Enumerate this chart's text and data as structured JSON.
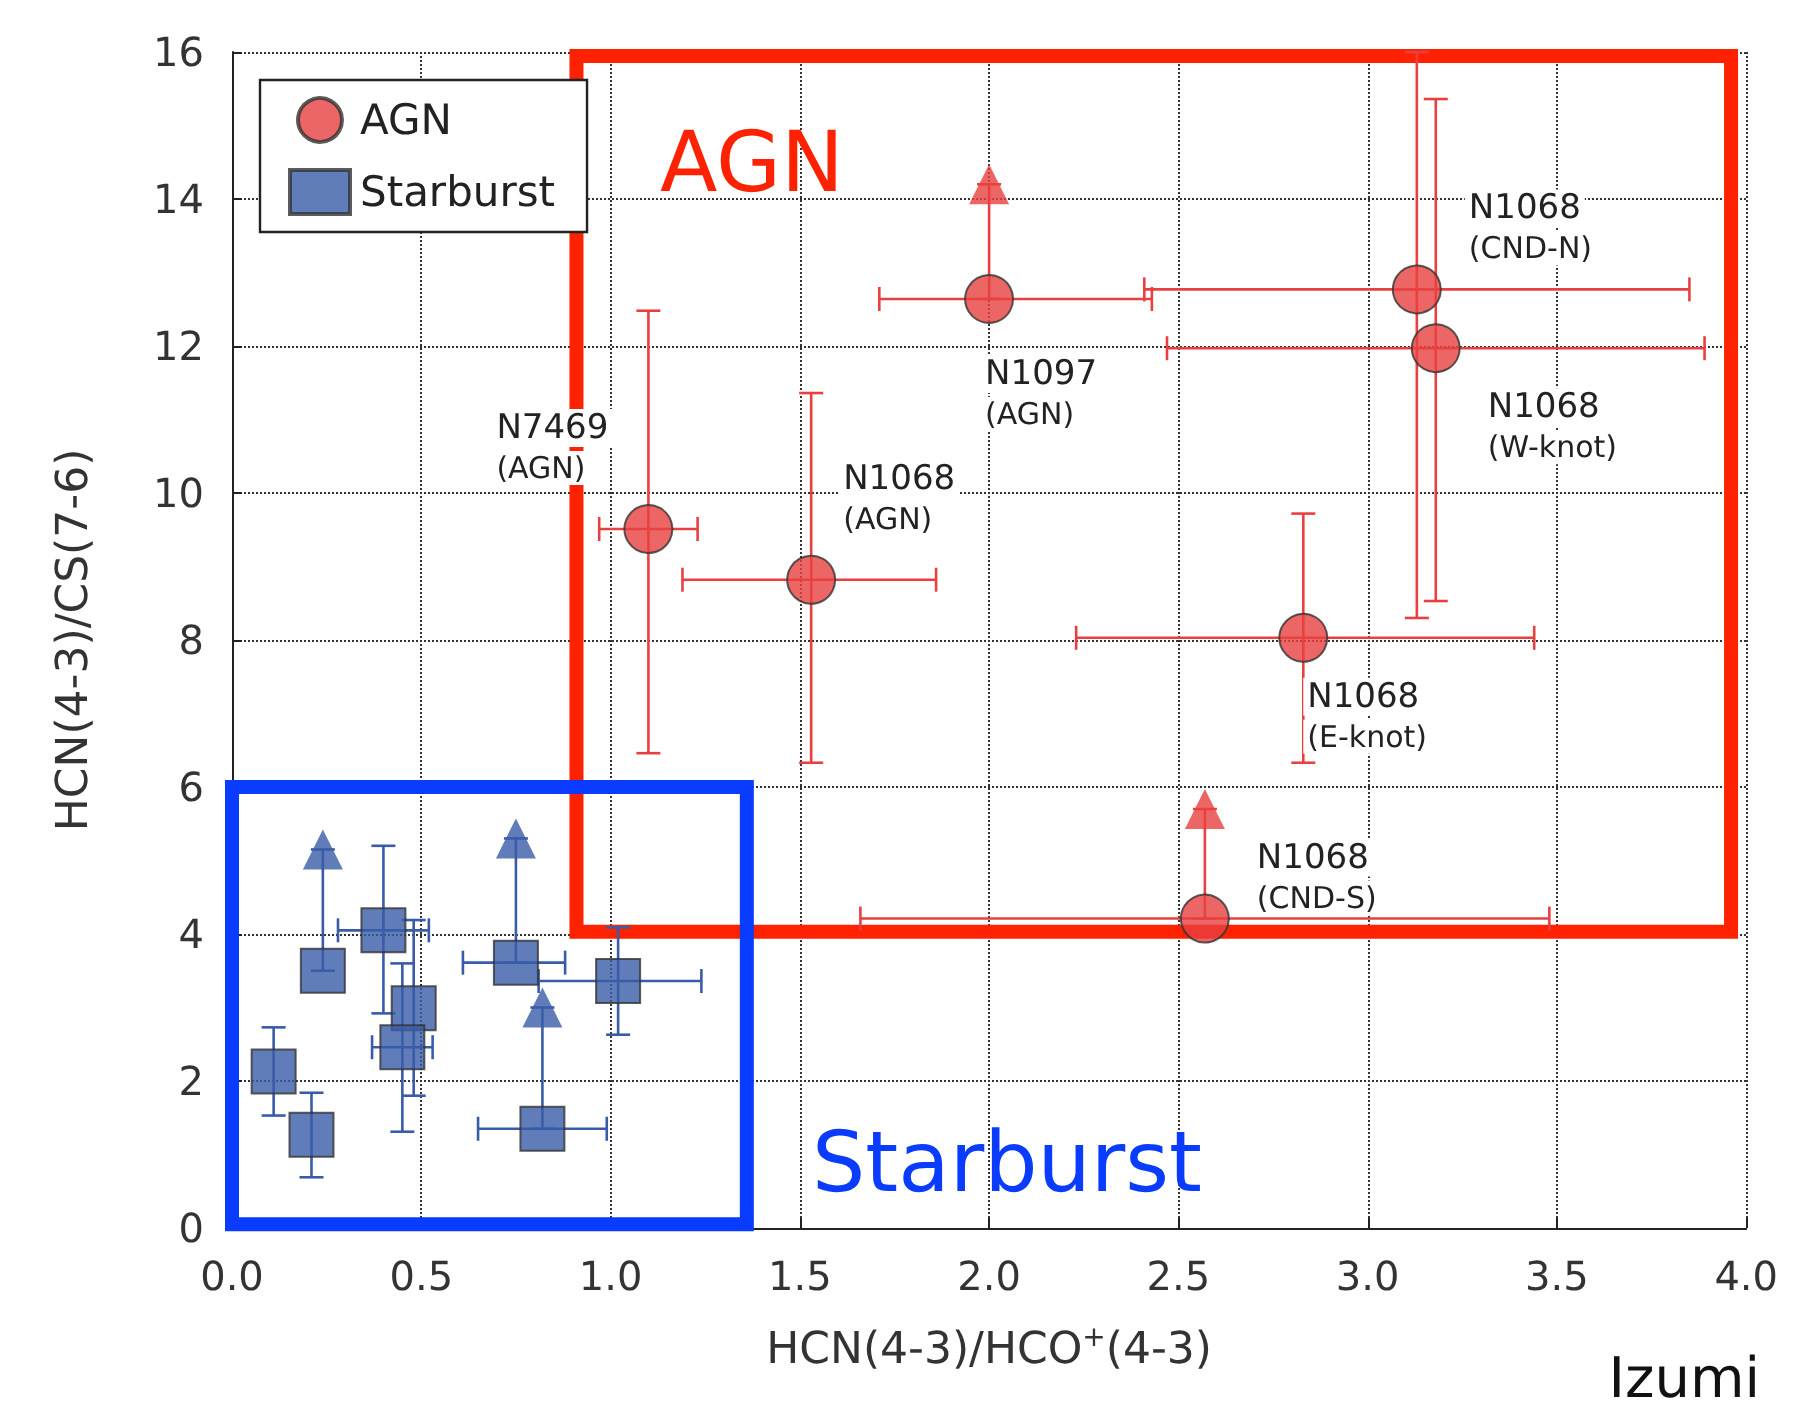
{
  "chart_data": {
    "type": "scatter",
    "xlabel": "HCN(4-3)/HCO$^{+}$(4-3)",
    "ylabel": "HCN(4-3)/CS(7-6)",
    "xlim": [
      0,
      4
    ],
    "xticks": [
      {
        "value": 0,
        "label": "0.0"
      },
      {
        "value": 0.5,
        "label": "0.5"
      },
      {
        "value": 1,
        "label": "1.0"
      },
      {
        "value": 1.5,
        "label": "1.5"
      },
      {
        "value": 2,
        "label": "2.0"
      },
      {
        "value": 2.5,
        "label": "2.5"
      },
      {
        "value": 3,
        "label": "3.0"
      },
      {
        "value": 3.5,
        "label": "3.5"
      },
      {
        "value": 4,
        "label": "4.0"
      }
    ],
    "ylim": [
      0,
      16
    ],
    "yticks": [
      0,
      2,
      4,
      6,
      8,
      10,
      12,
      14,
      16
    ],
    "grid": true,
    "legend": "top left",
    "series": [
      {
        "name": "AGN",
        "color": "#e84040",
        "marker": "circle",
        "x": [
          1.1,
          1.53,
          2.0,
          3.13,
          3.18,
          2.83,
          2.57
        ],
        "values": [
          9.51,
          8.82,
          12.64,
          12.77,
          11.97,
          8.03,
          4.21
        ],
        "errors": [
          [
            6.46,
            12.48
          ],
          [
            6.33,
            11.36
          ],
          [
            12.64,
            14.2
          ],
          [
            8.3,
            16
          ],
          [
            8.53,
            15.36
          ],
          [
            6.33,
            9.72
          ],
          [
            4.21,
            5.7
          ]
        ],
        "xerrors": [
          [
            0.97,
            1.23
          ],
          [
            1.19,
            1.86
          ],
          [
            1.71,
            2.43
          ],
          [
            2.41,
            3.85
          ],
          [
            2.47,
            3.89
          ],
          [
            2.23,
            3.44
          ],
          [
            1.66,
            3.48
          ]
        ]
      },
      {
        "name": "Starburst",
        "color": "#3a5ca8",
        "marker": "square",
        "x": [
          0.24,
          0.4,
          0.48,
          0.45,
          0.11,
          0.21,
          0.75,
          0.82,
          1.02
        ],
        "values": [
          3.5,
          4.05,
          2.99,
          2.46,
          2.13,
          1.27,
          3.61,
          1.35,
          3.36
        ],
        "errors": [
          [
            3.5,
            5.15
          ],
          [
            2.92,
            5.2
          ],
          [
            1.8,
            4.19
          ],
          [
            1.31,
            3.6
          ],
          [
            1.53,
            2.73
          ],
          [
            0.69,
            1.84
          ],
          [
            3.61,
            5.3
          ],
          [
            1.35,
            3.0
          ],
          [
            2.63,
            4.09
          ]
        ],
        "xerrors": [
          null,
          [
            0.28,
            0.52
          ],
          null,
          [
            0.37,
            0.53
          ],
          null,
          null,
          [
            0.61,
            0.88
          ],
          [
            0.65,
            0.99
          ],
          [
            0.81,
            1.24
          ]
        ]
      },
      {
        "color": "#e84040",
        "marker": "triangle",
        "x": [
          2.0,
          2.57
        ],
        "values": [
          14.2,
          5.7
        ]
      },
      {
        "color": "#3a5ca8",
        "marker": "triangle",
        "x": [
          0.24,
          0.75,
          0.82
        ],
        "values": [
          5.15,
          5.3,
          3.0
        ]
      }
    ],
    "annotations": [
      {
        "text": "N7469\n(AGN)",
        "x": 1.1,
        "y": 9.51
      },
      {
        "text": "N1068\n(AGN)",
        "x": 1.53,
        "y": 8.82
      },
      {
        "text": "N1097\n(AGN)",
        "x": 2.0,
        "y": 12.64
      },
      {
        "text": "N1068\n(CND-N)",
        "x": 3.13,
        "y": 12.77
      },
      {
        "text": "N1068\n(W-knot)",
        "x": 3.18,
        "y": 11.97
      },
      {
        "text": "N1068\n(E-knot)",
        "x": 2.83,
        "y": 8.03
      },
      {
        "text": "N1068\n(CND-S)",
        "x": 2.57,
        "y": 4.21
      },
      "AGN",
      "Starburst",
      "Izumi"
    ]
  }
}
